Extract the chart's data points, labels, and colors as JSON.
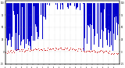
{
  "title": "",
  "bg_color": "#ffffff",
  "blue_color": "#0000cc",
  "red_color": "#cc0000",
  "light_blue_color": "#8888ff",
  "grid_color": "#999999",
  "figsize": [
    1.6,
    0.87
  ],
  "dpi": 100,
  "ylim": [
    -25,
    105
  ],
  "xlim": [
    0,
    210
  ],
  "seed": 7
}
